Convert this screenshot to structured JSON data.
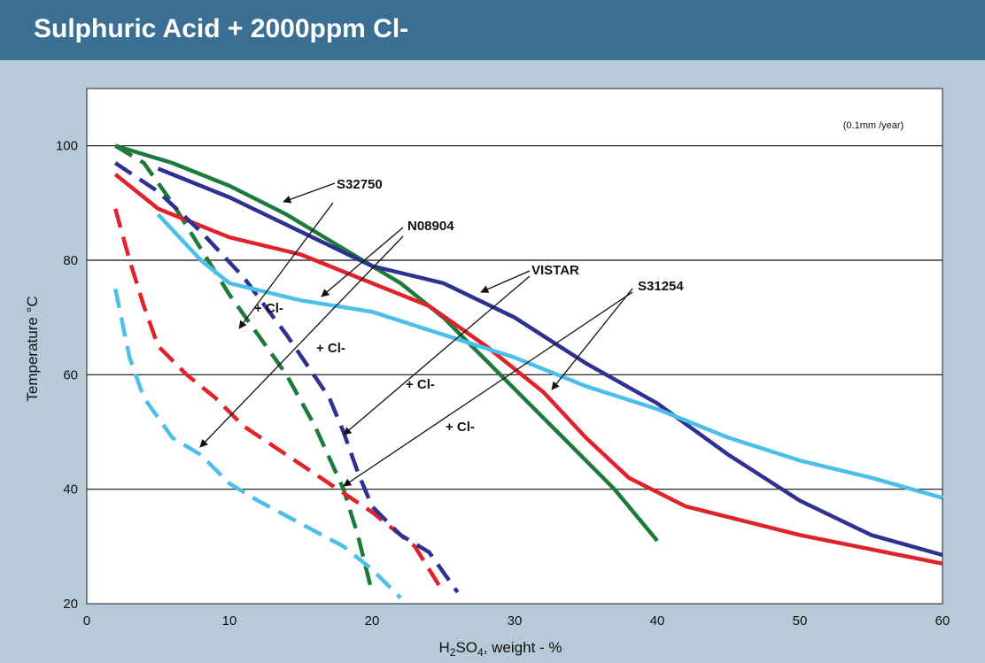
{
  "header": {
    "title": "Sulphuric Acid + 2000ppm Cl-"
  },
  "colors": {
    "banner": "#3a6f93",
    "background": "#b7cad7",
    "S32750": "#1e7a3a",
    "N08904": "#e0232b",
    "VISTAR": "#2e3192",
    "S31254": "#4bbfe9"
  },
  "chart_data": {
    "type": "line",
    "title": "Sulphuric Acid + 2000ppm Cl-",
    "xlabel": "H2SO4, weight - %",
    "xlabel_parts": {
      "pre": "H",
      "sub1": "2",
      "mid": "SO",
      "sub2": "4",
      "post": ", weight - %"
    },
    "ylabel": "Temperature °C",
    "unit_note": "(0.1mm /year)",
    "xlim": [
      0,
      60
    ],
    "ylim": [
      20,
      110
    ],
    "x_ticks": [
      0,
      10,
      20,
      30,
      40,
      50,
      60
    ],
    "y_ticks": [
      20,
      40,
      60,
      80,
      100
    ],
    "grid_y": [
      40,
      60,
      80,
      100
    ],
    "legend": "none",
    "series": [
      {
        "name": "S32750",
        "style": "solid",
        "color": "#1e7a3a",
        "points": [
          [
            2,
            100
          ],
          [
            6,
            97
          ],
          [
            10,
            93
          ],
          [
            14,
            88
          ],
          [
            18,
            82
          ],
          [
            22,
            76
          ],
          [
            25,
            70
          ],
          [
            27,
            65
          ],
          [
            29,
            60
          ],
          [
            31,
            55
          ],
          [
            33,
            50
          ],
          [
            35,
            45
          ],
          [
            37,
            40
          ],
          [
            40,
            31
          ]
        ]
      },
      {
        "name": "S32750",
        "style": "dashed",
        "color": "#1e7a3a",
        "points": [
          [
            2,
            100
          ],
          [
            4,
            97
          ],
          [
            6,
            90
          ],
          [
            8,
            82
          ],
          [
            10,
            74
          ],
          [
            12,
            67
          ],
          [
            14,
            60
          ],
          [
            16,
            51
          ],
          [
            18,
            40
          ],
          [
            19,
            32
          ],
          [
            20,
            22
          ]
        ]
      },
      {
        "name": "N08904",
        "style": "solid",
        "color": "#e0232b",
        "points": [
          [
            2,
            95
          ],
          [
            5,
            89
          ],
          [
            10,
            84
          ],
          [
            15,
            81
          ],
          [
            20,
            76
          ],
          [
            24,
            72
          ],
          [
            28,
            65
          ],
          [
            32,
            57
          ],
          [
            35,
            49
          ],
          [
            38,
            42
          ],
          [
            42,
            37
          ],
          [
            50,
            32
          ],
          [
            60,
            27
          ]
        ]
      },
      {
        "name": "N08904",
        "style": "dashed",
        "color": "#e0232b",
        "points": [
          [
            2,
            89
          ],
          [
            3,
            80
          ],
          [
            4,
            72
          ],
          [
            5,
            65
          ],
          [
            7,
            60
          ],
          [
            9,
            56
          ],
          [
            11,
            51
          ],
          [
            14,
            46
          ],
          [
            17,
            41
          ],
          [
            20,
            36
          ],
          [
            23,
            30
          ],
          [
            25,
            22
          ]
        ]
      },
      {
        "name": "VISTAR",
        "style": "solid",
        "color": "#2e3192",
        "points": [
          [
            5,
            96
          ],
          [
            10,
            91
          ],
          [
            15,
            85
          ],
          [
            20,
            79
          ],
          [
            25,
            76
          ],
          [
            30,
            70
          ],
          [
            35,
            62
          ],
          [
            40,
            55
          ],
          [
            45,
            46
          ],
          [
            50,
            38
          ],
          [
            55,
            32
          ],
          [
            60,
            28.5
          ]
        ]
      },
      {
        "name": "VISTAR",
        "style": "dashed",
        "color": "#2e3192",
        "points": [
          [
            2,
            97
          ],
          [
            5,
            92
          ],
          [
            8,
            85
          ],
          [
            11,
            77
          ],
          [
            14,
            67
          ],
          [
            17,
            56
          ],
          [
            18,
            50
          ],
          [
            19,
            43
          ],
          [
            20,
            37
          ],
          [
            22,
            32
          ],
          [
            24,
            29
          ],
          [
            26,
            22
          ]
        ]
      },
      {
        "name": "S31254",
        "style": "solid",
        "color": "#4bbfe9",
        "points": [
          [
            5,
            88
          ],
          [
            8,
            80
          ],
          [
            10,
            76
          ],
          [
            15,
            73
          ],
          [
            20,
            71
          ],
          [
            25,
            67
          ],
          [
            30,
            63
          ],
          [
            35,
            58
          ],
          [
            40,
            54
          ],
          [
            45,
            49
          ],
          [
            50,
            45
          ],
          [
            55,
            42
          ],
          [
            60,
            38.5
          ]
        ]
      },
      {
        "name": "S31254",
        "style": "dashed",
        "color": "#4bbfe9",
        "points": [
          [
            2,
            75
          ],
          [
            3,
            63
          ],
          [
            4,
            56
          ],
          [
            6,
            49
          ],
          [
            8,
            46
          ],
          [
            10,
            41
          ],
          [
            12,
            38
          ],
          [
            15,
            34
          ],
          [
            18,
            30
          ],
          [
            20,
            26
          ],
          [
            22,
            21
          ]
        ]
      }
    ],
    "annotations": {
      "S32750": "S32750",
      "N08904": "N08904",
      "VISTAR": "VISTAR",
      "S31254": "S31254",
      "cl1": "+ Cl-",
      "cl2": "+ Cl-",
      "cl3": "+ Cl-",
      "cl4": "+ Cl-"
    }
  }
}
